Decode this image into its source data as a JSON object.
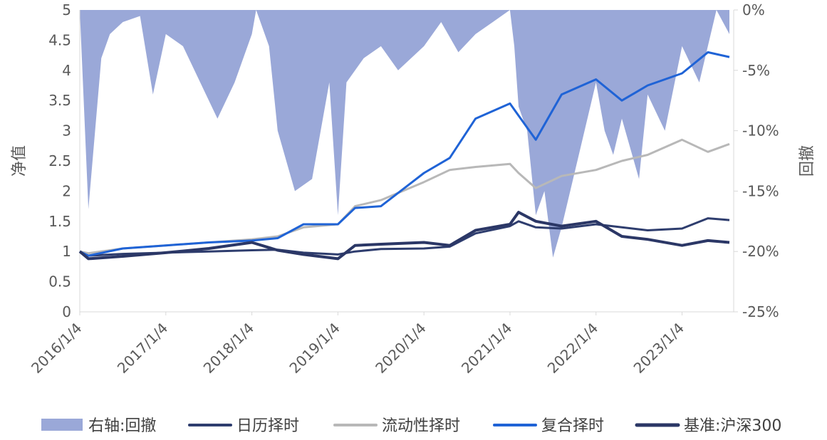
{
  "chart_data": {
    "type": "line",
    "title": "",
    "ylabel_left": "净值",
    "ylabel_right": "回撤",
    "xlabel": "",
    "x_ticks": [
      "2016/1/4",
      "2017/1/4",
      "2018/1/4",
      "2019/1/4",
      "2020/1/4",
      "2021/1/4",
      "2022/1/4",
      "2023/1/4"
    ],
    "ylim_left": [
      0,
      5
    ],
    "y_ticks_left": [
      "0",
      "0.5",
      "1",
      "1.5",
      "2",
      "2.5",
      "3",
      "3.5",
      "4",
      "4.5",
      "5"
    ],
    "ylim_right": [
      -0.25,
      0
    ],
    "y_ticks_right": [
      "0%",
      "-5%",
      "-10%",
      "-15%",
      "-20%",
      "-25%"
    ],
    "grid": false,
    "legend_position": "bottom",
    "legend": [
      "右轴:回撤",
      "日历择时",
      "流动性择时",
      "复合择时",
      "基准:沪深300"
    ],
    "series": [
      {
        "name": "日历择时",
        "axis": "left",
        "kind": "line",
        "color": "#2e3d6e",
        "x": [
          2016.0,
          2016.1,
          2016.5,
          2017.0,
          2017.5,
          2018.0,
          2018.3,
          2018.6,
          2019.0,
          2019.2,
          2019.5,
          2020.0,
          2020.3,
          2020.6,
          2021.0,
          2021.1,
          2021.3,
          2021.6,
          2022.0,
          2022.3,
          2022.6,
          2023.0,
          2023.3,
          2023.55
        ],
        "y": [
          1.0,
          0.93,
          0.96,
          0.98,
          1.0,
          1.02,
          1.03,
          0.98,
          0.95,
          1.0,
          1.04,
          1.05,
          1.08,
          1.3,
          1.42,
          1.5,
          1.4,
          1.38,
          1.45,
          1.4,
          1.35,
          1.38,
          1.55,
          1.52
        ]
      },
      {
        "name": "流动性择时",
        "axis": "left",
        "kind": "line",
        "color": "#b8b8b8",
        "x": [
          2016.0,
          2016.1,
          2016.5,
          2017.0,
          2017.5,
          2018.0,
          2018.3,
          2018.6,
          2019.0,
          2019.2,
          2019.5,
          2020.0,
          2020.3,
          2020.6,
          2021.0,
          2021.1,
          2021.3,
          2021.6,
          2022.0,
          2022.3,
          2022.6,
          2023.0,
          2023.3,
          2023.55
        ],
        "y": [
          1.0,
          0.97,
          1.05,
          1.1,
          1.15,
          1.2,
          1.25,
          1.4,
          1.45,
          1.75,
          1.85,
          2.15,
          2.35,
          2.4,
          2.45,
          2.3,
          2.05,
          2.25,
          2.35,
          2.5,
          2.6,
          2.85,
          2.65,
          2.78
        ]
      },
      {
        "name": "复合择时",
        "axis": "left",
        "kind": "line",
        "color": "#1f63d6",
        "x": [
          2016.0,
          2016.1,
          2016.5,
          2017.0,
          2017.5,
          2018.0,
          2018.3,
          2018.6,
          2019.0,
          2019.2,
          2019.5,
          2020.0,
          2020.3,
          2020.6,
          2021.0,
          2021.1,
          2021.3,
          2021.6,
          2022.0,
          2022.3,
          2022.6,
          2023.0,
          2023.3,
          2023.55
        ],
        "y": [
          1.0,
          0.93,
          1.05,
          1.1,
          1.15,
          1.18,
          1.22,
          1.45,
          1.45,
          1.72,
          1.75,
          2.3,
          2.55,
          3.2,
          3.45,
          3.25,
          2.85,
          3.6,
          3.85,
          3.5,
          3.75,
          3.95,
          4.3,
          4.22
        ]
      },
      {
        "name": "基准:沪深300",
        "axis": "left",
        "kind": "line",
        "color": "#2b3766",
        "x": [
          2016.0,
          2016.1,
          2016.5,
          2017.0,
          2017.5,
          2018.0,
          2018.3,
          2018.6,
          2019.0,
          2019.2,
          2019.5,
          2020.0,
          2020.3,
          2020.6,
          2021.0,
          2021.1,
          2021.3,
          2021.6,
          2022.0,
          2022.3,
          2022.6,
          2023.0,
          2023.3,
          2023.55
        ],
        "y": [
          1.0,
          0.88,
          0.92,
          0.98,
          1.05,
          1.15,
          1.02,
          0.95,
          0.88,
          1.1,
          1.12,
          1.15,
          1.1,
          1.35,
          1.45,
          1.65,
          1.5,
          1.42,
          1.5,
          1.25,
          1.2,
          1.1,
          1.18,
          1.15
        ]
      },
      {
        "name": "右轴:回撤",
        "axis": "right",
        "kind": "area",
        "color": "#9aa8d8",
        "x": [
          2016.0,
          2016.1,
          2016.25,
          2016.35,
          2016.5,
          2016.7,
          2016.85,
          2017.0,
          2017.2,
          2017.4,
          2017.6,
          2017.8,
          2018.0,
          2018.05,
          2018.2,
          2018.3,
          2018.5,
          2018.7,
          2018.9,
          2019.0,
          2019.1,
          2019.3,
          2019.5,
          2019.7,
          2020.0,
          2020.2,
          2020.4,
          2020.6,
          2020.8,
          2021.0,
          2021.05,
          2021.1,
          2021.2,
          2021.3,
          2021.4,
          2021.5,
          2021.6,
          2021.8,
          2022.0,
          2022.1,
          2022.2,
          2022.3,
          2022.5,
          2022.6,
          2022.8,
          2023.0,
          2023.2,
          2023.4,
          2023.55
        ],
        "y": [
          0,
          -0.165,
          -0.04,
          -0.02,
          -0.01,
          -0.005,
          -0.07,
          -0.02,
          -0.03,
          -0.06,
          -0.09,
          -0.06,
          -0.02,
          0,
          -0.03,
          -0.1,
          -0.15,
          -0.14,
          -0.06,
          -0.17,
          -0.06,
          -0.04,
          -0.03,
          -0.05,
          -0.03,
          -0.01,
          -0.035,
          -0.02,
          -0.01,
          0,
          -0.03,
          -0.08,
          -0.1,
          -0.17,
          -0.15,
          -0.205,
          -0.18,
          -0.12,
          -0.06,
          -0.1,
          -0.12,
          -0.09,
          -0.14,
          -0.07,
          -0.1,
          -0.03,
          -0.06,
          0,
          -0.02
        ]
      }
    ]
  }
}
